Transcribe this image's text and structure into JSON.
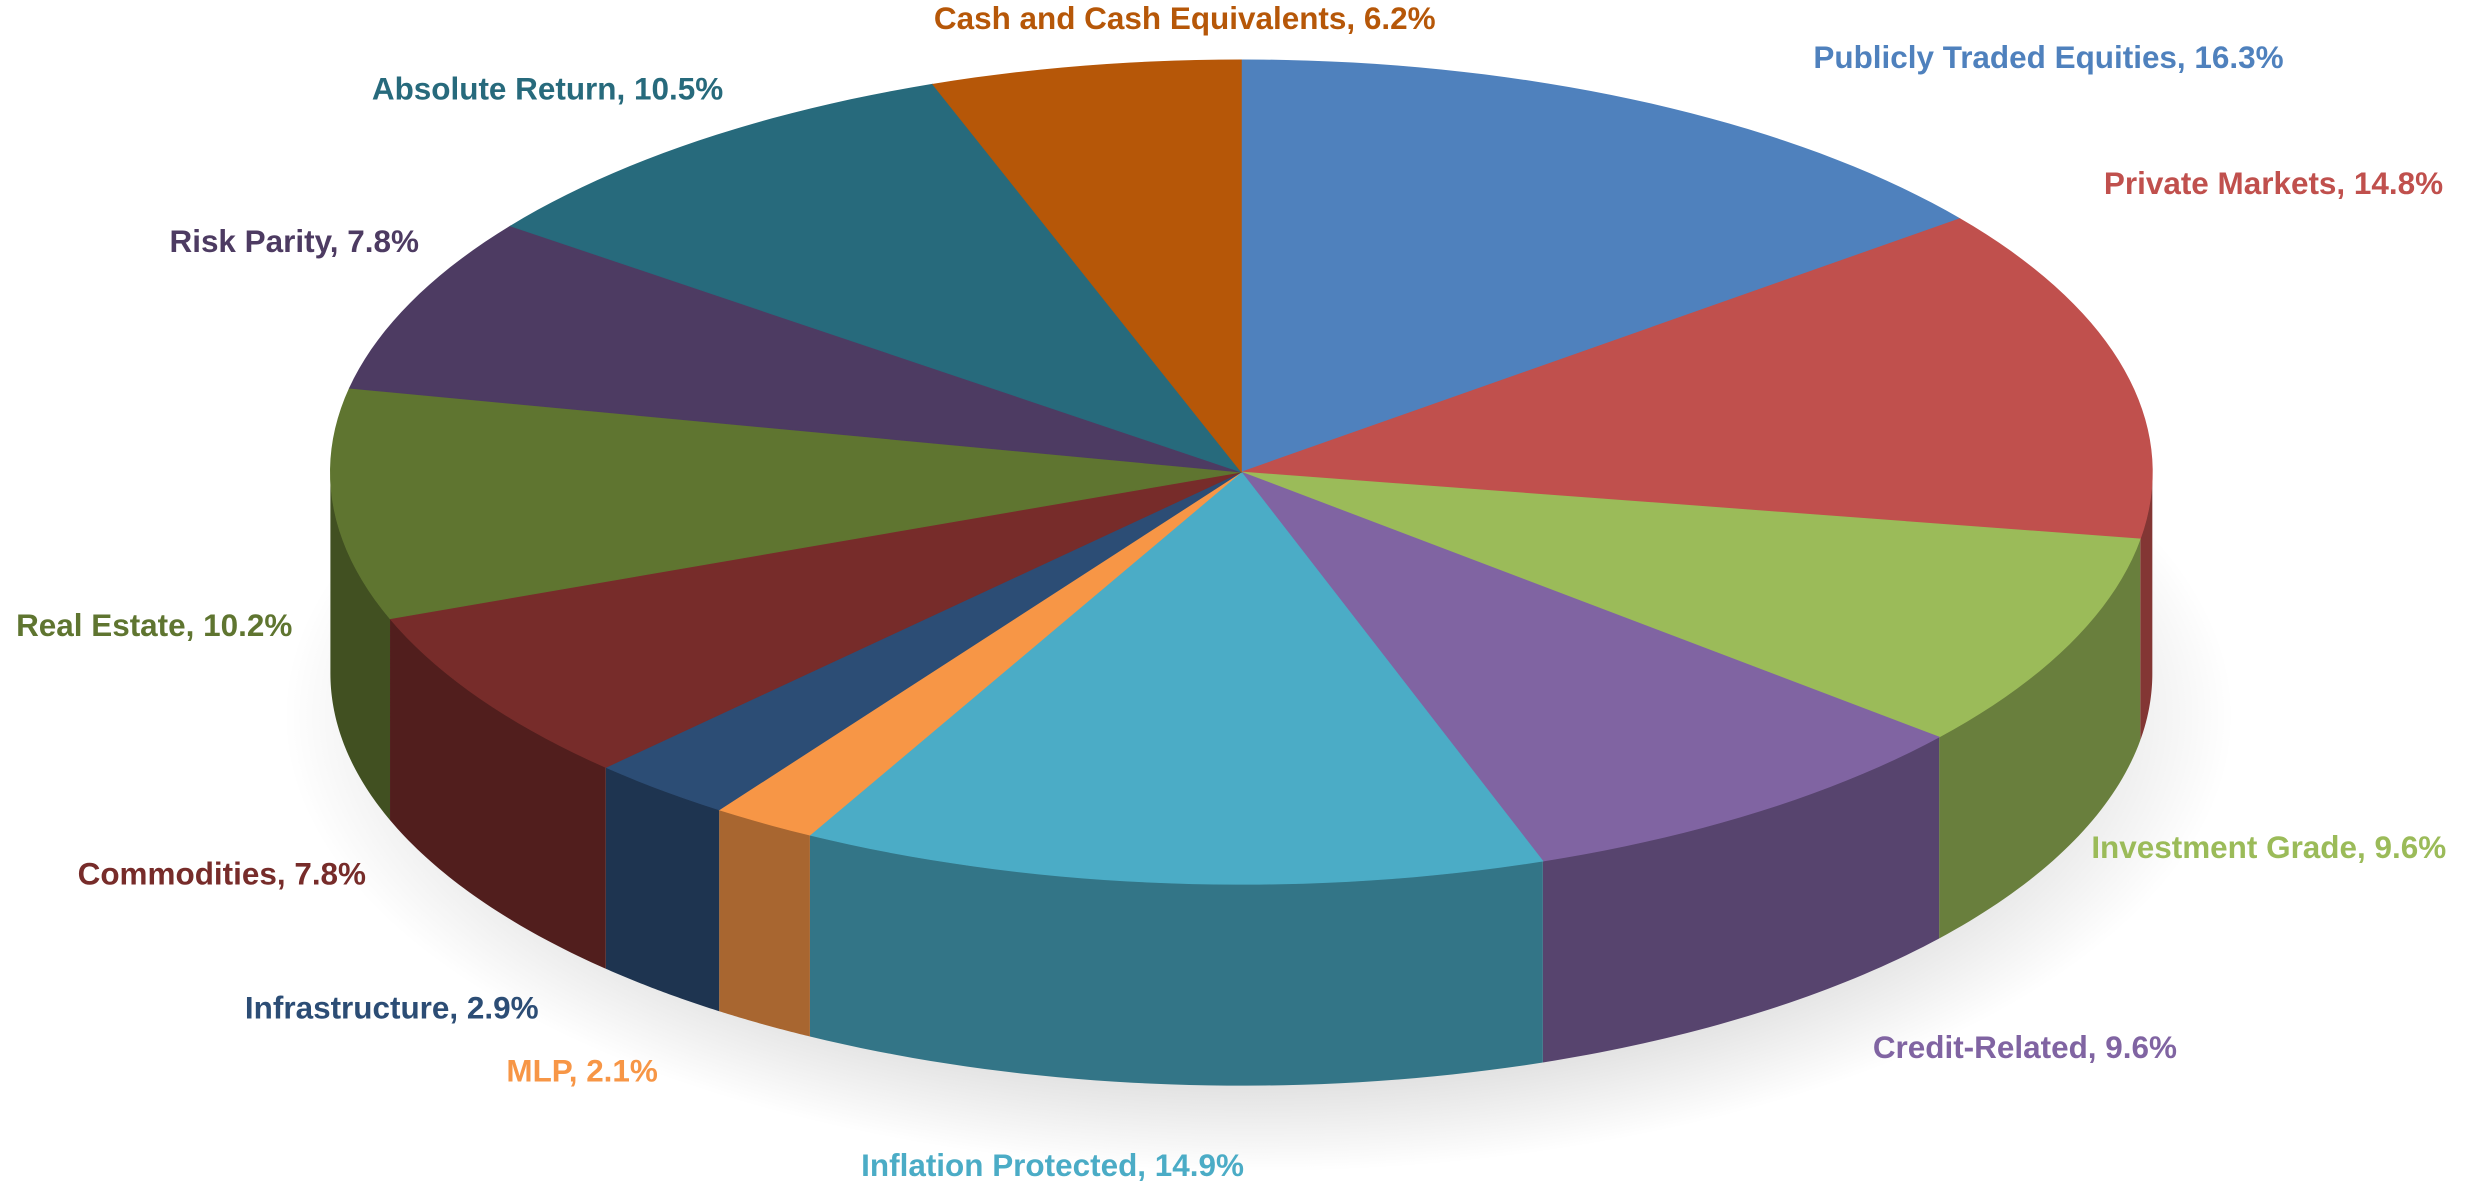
{
  "chart_data": {
    "type": "pie",
    "labels": [
      "Publicly Traded Equities, 16.3%",
      "Private Markets, 14.8%",
      "Investment Grade, 9.6%",
      "Credit-Related, 9.6%",
      "Inflation Protected, 14.9%",
      "MLP, 2.1%",
      "Infrastructure, 2.9%",
      "Commodities, 7.8%",
      "Real Estate, 10.2%",
      "Risk Parity, 7.8%",
      "Absolute Return, 10.5%",
      "Cash and Cash Equivalents, 6.2%"
    ],
    "values": [
      16.3,
      14.8,
      9.6,
      9.6,
      14.9,
      2.1,
      2.9,
      7.8,
      10.2,
      7.8,
      10.5,
      6.2
    ],
    "colors": [
      "#4f81bd",
      "#c0504d",
      "#9bbb59",
      "#8064a2",
      "#4bacc6",
      "#f79646",
      "#2c4d75",
      "#772c2a",
      "#5f7530",
      "#4d3b62",
      "#276a7c",
      "#b65708"
    ]
  }
}
